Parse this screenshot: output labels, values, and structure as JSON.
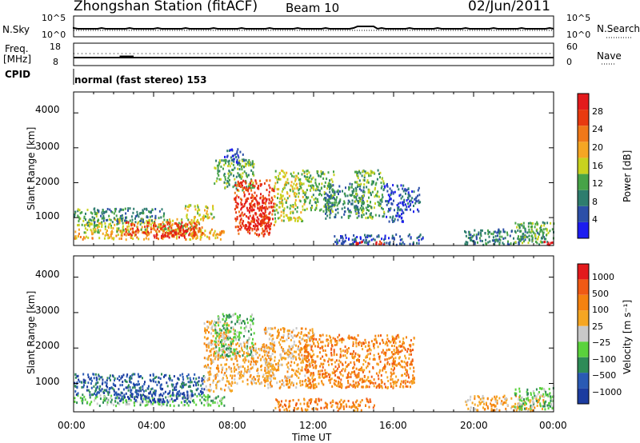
{
  "header": {
    "station": "Zhongshan Station (fitACF)",
    "beam": "Beam 10",
    "date": "02/Jun/2011"
  },
  "strip_labels": {
    "nsky": "N.Sky",
    "freq_line1": "Freq.",
    "freq_line2": "[MHz]",
    "cpid": "CPID",
    "nsearch": "N.Search",
    "nave": "Nave",
    "nsky_ticks": [
      "10^5",
      "10^0"
    ],
    "nsearch_ticks": [
      "10^5",
      "10^0"
    ],
    "freq_ticks": [
      "18",
      "8"
    ],
    "nave_ticks": [
      "60",
      "0"
    ],
    "cpid_text": "normal (fast stereo) 153"
  },
  "colors": {
    "scale": [
      "#1c1cf0",
      "#2c4fa8",
      "#2e7d6e",
      "#47a347",
      "#c8d21e",
      "#f5a623",
      "#f07818",
      "#e83a0f",
      "#e31a1c"
    ],
    "velocity_scale": [
      "#e31a1c",
      "#f05a14",
      "#f5820f",
      "#f5a623",
      "#c8c8c8",
      "#5ad23c",
      "#2e8b57",
      "#2a5ab4",
      "#1c3ca0"
    ]
  },
  "chart_data": [
    {
      "type": "heatmap",
      "name": "power",
      "ylabel": "Slant Range [km]",
      "yticks": [
        "1000",
        "2000",
        "3000",
        "4000"
      ],
      "ylim": [
        200,
        4600
      ],
      "xlim_hours": [
        0,
        24
      ],
      "colorbar_label": "Power [dB]",
      "colorbar_ticks": [
        "4",
        "8",
        "12",
        "16",
        "20",
        "24",
        "28"
      ],
      "blobs": [
        {
          "t0": 0.0,
          "t1": 7.5,
          "r0": 400,
          "r1": 700,
          "v": 5
        },
        {
          "t0": 0.5,
          "t1": 6.5,
          "r0": 600,
          "r1": 1000,
          "v": 4
        },
        {
          "t0": 0.0,
          "t1": 1.2,
          "r0": 800,
          "r1": 1300,
          "v": 3
        },
        {
          "t0": 1.0,
          "t1": 4.5,
          "r0": 900,
          "r1": 1300,
          "v": 2
        },
        {
          "t0": 2.5,
          "t1": 6.5,
          "r0": 500,
          "r1": 900,
          "v": 7
        },
        {
          "t0": 4.0,
          "t1": 6.0,
          "r0": 450,
          "r1": 650,
          "v": 8
        },
        {
          "t0": 5.5,
          "t1": 7.0,
          "r0": 1000,
          "r1": 1400,
          "v": 4
        },
        {
          "t0": 7.0,
          "t1": 9.0,
          "r0": 1800,
          "r1": 2700,
          "v": 3
        },
        {
          "t0": 7.5,
          "t1": 8.5,
          "r0": 2600,
          "r1": 3000,
          "v": 1
        },
        {
          "t0": 8.0,
          "t1": 10.0,
          "r0": 500,
          "r1": 2100,
          "v": 7
        },
        {
          "t0": 8.5,
          "t1": 9.8,
          "r0": 700,
          "r1": 1600,
          "v": 8
        },
        {
          "t0": 10.0,
          "t1": 11.5,
          "r0": 900,
          "r1": 2400,
          "v": 4
        },
        {
          "t0": 11.5,
          "t1": 13.0,
          "r0": 1200,
          "r1": 2400,
          "v": 3
        },
        {
          "t0": 12.5,
          "t1": 14.5,
          "r0": 1000,
          "r1": 2000,
          "v": 2
        },
        {
          "t0": 14.0,
          "t1": 15.5,
          "r0": 1000,
          "r1": 2400,
          "v": 3
        },
        {
          "t0": 15.5,
          "t1": 16.5,
          "r0": 900,
          "r1": 2000,
          "v": 1
        },
        {
          "t0": 16.5,
          "t1": 17.3,
          "r0": 1200,
          "r1": 1900,
          "v": 1
        },
        {
          "t0": 13.0,
          "t1": 17.5,
          "r0": 250,
          "r1": 550,
          "v": 1
        },
        {
          "t0": 14.0,
          "t1": 14.5,
          "r0": 250,
          "r1": 350,
          "v": 8
        },
        {
          "t0": 15.0,
          "t1": 15.5,
          "r0": 250,
          "r1": 350,
          "v": 8
        },
        {
          "t0": 19.5,
          "t1": 23.5,
          "r0": 250,
          "r1": 700,
          "v": 2
        },
        {
          "t0": 22.0,
          "t1": 24.0,
          "r0": 300,
          "r1": 900,
          "v": 3
        },
        {
          "t0": 23.5,
          "t1": 24.0,
          "r0": 250,
          "r1": 350,
          "v": 8
        }
      ]
    },
    {
      "type": "heatmap",
      "name": "velocity",
      "ylabel": "Slant Range [km]",
      "yticks": [
        "1000",
        "2000",
        "3000",
        "4000"
      ],
      "ylim": [
        200,
        4600
      ],
      "xlim_hours": [
        0,
        24
      ],
      "colorbar_label": "Velocity [m s⁻¹]",
      "colorbar_ticks": [
        "1000",
        "500",
        "100",
        "25",
        "−25",
        "−100",
        "−500",
        "−1000"
      ],
      "xticks": [
        "00:00",
        "04:00",
        "08:00",
        "12:00",
        "16:00",
        "20:00",
        "00:00"
      ],
      "xlabel": "Time UT",
      "blobs": [
        {
          "t0": 0.0,
          "t1": 7.5,
          "r0": 400,
          "r1": 700,
          "v": 5
        },
        {
          "t0": 0.0,
          "t1": 1.0,
          "r0": 700,
          "r1": 1300,
          "v": 7
        },
        {
          "t0": 1.0,
          "t1": 6.5,
          "r0": 700,
          "r1": 1300,
          "v": 7
        },
        {
          "t0": 2.0,
          "t1": 6.0,
          "r0": 500,
          "r1": 800,
          "v": 8
        },
        {
          "t0": 6.5,
          "t1": 8.0,
          "r0": 800,
          "r1": 2800,
          "v": 3
        },
        {
          "t0": 7.0,
          "t1": 9.0,
          "r0": 1800,
          "r1": 3000,
          "v": 5
        },
        {
          "t0": 8.0,
          "t1": 10.0,
          "r0": 1000,
          "r1": 2200,
          "v": 3
        },
        {
          "t0": 9.5,
          "t1": 12.0,
          "r0": 900,
          "r1": 2600,
          "v": 3
        },
        {
          "t0": 11.5,
          "t1": 17.0,
          "r0": 900,
          "r1": 2400,
          "v": 2
        },
        {
          "t0": 10.0,
          "t1": 15.0,
          "r0": 250,
          "r1": 600,
          "v": 2
        },
        {
          "t0": 19.5,
          "t1": 23.5,
          "r0": 250,
          "r1": 700,
          "v": 3
        },
        {
          "t0": 22.0,
          "t1": 24.0,
          "r0": 300,
          "r1": 900,
          "v": 5
        }
      ]
    }
  ]
}
